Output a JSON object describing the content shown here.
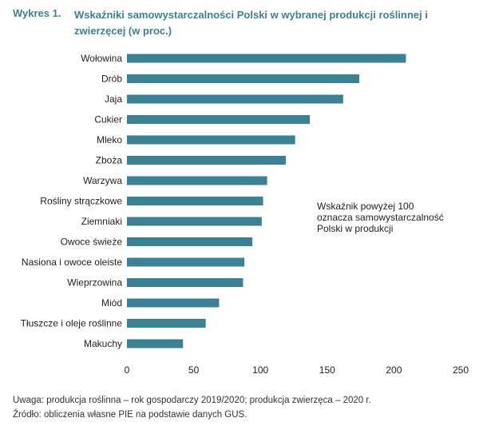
{
  "figure": {
    "number": "Wykres 1.",
    "title": "Wskaźniki samowystarczalności Polski w wybranej produkcji roślinnej i zwierzęcej (w proc.)"
  },
  "annotation": "Wskaźnik powyżej 100\noznacza samowystarczalność\nPolski w produkcji",
  "notes": {
    "uwaga": "Uwaga: produkcja roślinna – rok gospodarczy 2019/2020; produkcja zwierzęca – 2020 r.",
    "zrodlo": "Źródło: obliczenia własne PIE na podstawie danych GUS."
  },
  "chart_data": {
    "type": "bar",
    "orientation": "horizontal",
    "categories": [
      "Wołowina",
      "Drób",
      "Jaja",
      "Cukier",
      "Mleko",
      "Zboża",
      "Warzywa",
      "Rośliny strączkowe",
      "Ziemniaki",
      "Owoce świeże",
      "Nasiona i owoce oleiste",
      "Wieprzowina",
      "Miód",
      "Tłuszcze i oleje roślinne",
      "Makuchy"
    ],
    "values": [
      209,
      174,
      162,
      137,
      126,
      119,
      105,
      102,
      101,
      94,
      88,
      87,
      69,
      59,
      42
    ],
    "xlim": [
      0,
      250
    ],
    "xticks": [
      0,
      50,
      100,
      150,
      200,
      250
    ],
    "bar_color": "#3b8196",
    "grid": false
  }
}
